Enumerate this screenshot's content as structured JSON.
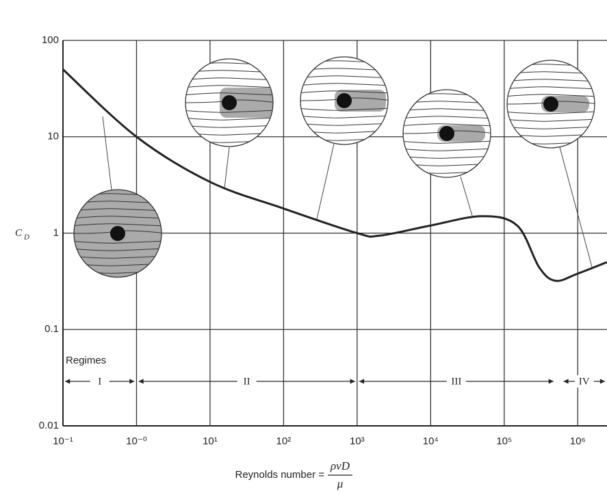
{
  "chart_data": {
    "type": "line",
    "log_x": true,
    "log_y": true,
    "grid": true,
    "xlim": [
      0.1,
      2500000
    ],
    "ylim": [
      0.01,
      100
    ],
    "xticks": [
      {
        "value": 0.1,
        "label": "10⁻¹"
      },
      {
        "value": 1,
        "label": "10⁻⁰"
      },
      {
        "value": 10,
        "label": "10¹"
      },
      {
        "value": 100,
        "label": "10²"
      },
      {
        "value": 1000,
        "label": "10³"
      },
      {
        "value": 10000,
        "label": "10⁴"
      },
      {
        "value": 100000,
        "label": "10⁵"
      },
      {
        "value": 1000000,
        "label": "10⁶"
      }
    ],
    "yticks": [
      100,
      10,
      1,
      0.1,
      0.01
    ],
    "xlabel": {
      "text": "Reynolds number =",
      "numerator": "ρvD",
      "denominator": "μ"
    },
    "ylabel": {
      "main": "C",
      "sub": "D"
    },
    "series": [
      {
        "color": "#222222",
        "x": [
          0.1,
          1,
          10,
          100,
          1000,
          2000,
          10000,
          50000,
          150000,
          300000,
          500000,
          1000000,
          2500000
        ],
        "values": [
          50,
          10,
          3.4,
          1.8,
          1.0,
          0.94,
          1.2,
          1.5,
          1.2,
          0.44,
          0.32,
          0.38,
          0.5
        ]
      }
    ],
    "regimes": {
      "title": "Regimes",
      "items": [
        {
          "label": "I",
          "x": [
            0.1,
            1
          ]
        },
        {
          "label": "II",
          "x": [
            1,
            1000
          ]
        },
        {
          "label": "III",
          "x": [
            1000,
            500000
          ]
        },
        {
          "label": "IV",
          "x": [
            600000,
            2500000
          ]
        }
      ]
    }
  }
}
